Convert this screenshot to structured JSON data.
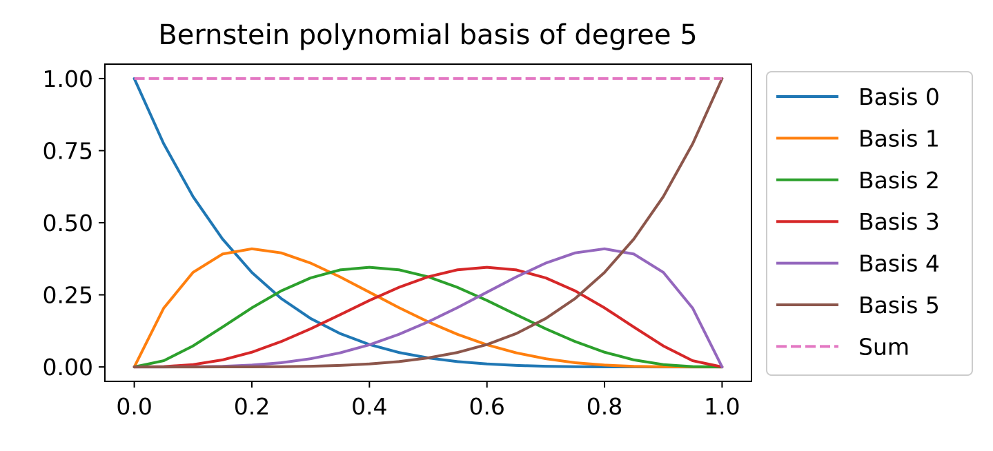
{
  "chart_data": {
    "type": "line",
    "title": "Bernstein polynomial basis of degree 5",
    "xlabel": "",
    "ylabel": "",
    "xlim": [
      -0.05,
      1.05
    ],
    "ylim": [
      -0.05,
      1.05
    ],
    "xticks": [
      0.0,
      0.2,
      0.4,
      0.6,
      0.8,
      1.0
    ],
    "xtick_labels": [
      "0.0",
      "0.2",
      "0.4",
      "0.6",
      "0.8",
      "1.0"
    ],
    "yticks": [
      0.0,
      0.25,
      0.5,
      0.75,
      1.0
    ],
    "ytick_labels": [
      "0.00",
      "0.25",
      "0.50",
      "0.75",
      "1.00"
    ],
    "grid": false,
    "legend_position": "outside-right",
    "x": [
      0.0,
      0.05,
      0.1,
      0.15,
      0.2,
      0.25,
      0.3,
      0.35,
      0.4,
      0.45,
      0.5,
      0.55,
      0.6,
      0.65,
      0.7,
      0.75,
      0.8,
      0.85,
      0.9,
      0.95,
      1.0
    ],
    "series": [
      {
        "name": "Basis 0",
        "color": "#1f77b4",
        "dash": "solid",
        "values": [
          1.0,
          0.774,
          0.5905,
          0.4437,
          0.3277,
          0.2373,
          0.1681,
          0.116,
          0.0778,
          0.0503,
          0.0313,
          0.0185,
          0.0102,
          0.0053,
          0.0024,
          0.001,
          0.0003,
          0.0001,
          0.0,
          0.0,
          0.0
        ]
      },
      {
        "name": "Basis 1",
        "color": "#ff7f0e",
        "dash": "solid",
        "values": [
          0.0,
          0.2036,
          0.3281,
          0.3915,
          0.4096,
          0.3955,
          0.3602,
          0.3124,
          0.2592,
          0.2059,
          0.1563,
          0.1128,
          0.0768,
          0.0488,
          0.0284,
          0.0146,
          0.0064,
          0.0022,
          0.0005,
          0.0,
          0.0
        ]
      },
      {
        "name": "Basis 2",
        "color": "#2ca02c",
        "dash": "solid",
        "values": [
          0.0,
          0.0214,
          0.0729,
          0.1382,
          0.2048,
          0.2637,
          0.3087,
          0.3364,
          0.3456,
          0.3369,
          0.3125,
          0.2757,
          0.2304,
          0.1811,
          0.1323,
          0.0879,
          0.0512,
          0.0244,
          0.0081,
          0.0011,
          0.0
        ]
      },
      {
        "name": "Basis 3",
        "color": "#d62728",
        "dash": "solid",
        "values": [
          0.0,
          0.0011,
          0.0081,
          0.0244,
          0.0512,
          0.0879,
          0.1323,
          0.1811,
          0.2304,
          0.2757,
          0.3125,
          0.3369,
          0.3456,
          0.3364,
          0.3087,
          0.2637,
          0.2048,
          0.1382,
          0.0729,
          0.0214,
          0.0
        ]
      },
      {
        "name": "Basis 4",
        "color": "#9467bd",
        "dash": "solid",
        "values": [
          0.0,
          0.0,
          0.0005,
          0.0022,
          0.0064,
          0.0146,
          0.0284,
          0.0488,
          0.0768,
          0.1128,
          0.1563,
          0.2059,
          0.2592,
          0.3124,
          0.3602,
          0.3955,
          0.4096,
          0.3915,
          0.3281,
          0.2036,
          0.0
        ]
      },
      {
        "name": "Basis 5",
        "color": "#8c564b",
        "dash": "solid",
        "values": [
          0.0,
          0.0,
          0.0,
          0.0001,
          0.0003,
          0.001,
          0.0024,
          0.0053,
          0.0102,
          0.0185,
          0.0313,
          0.0503,
          0.0778,
          0.116,
          0.1681,
          0.2373,
          0.3277,
          0.4437,
          0.5905,
          0.774,
          1.0
        ]
      },
      {
        "name": "Sum",
        "color": "#e377c2",
        "dash": "dashed",
        "values": [
          1.0,
          1.0,
          1.0,
          1.0,
          1.0,
          1.0,
          1.0,
          1.0,
          1.0,
          1.0,
          1.0,
          1.0,
          1.0,
          1.0,
          1.0,
          1.0,
          1.0,
          1.0,
          1.0,
          1.0,
          1.0
        ]
      }
    ]
  }
}
